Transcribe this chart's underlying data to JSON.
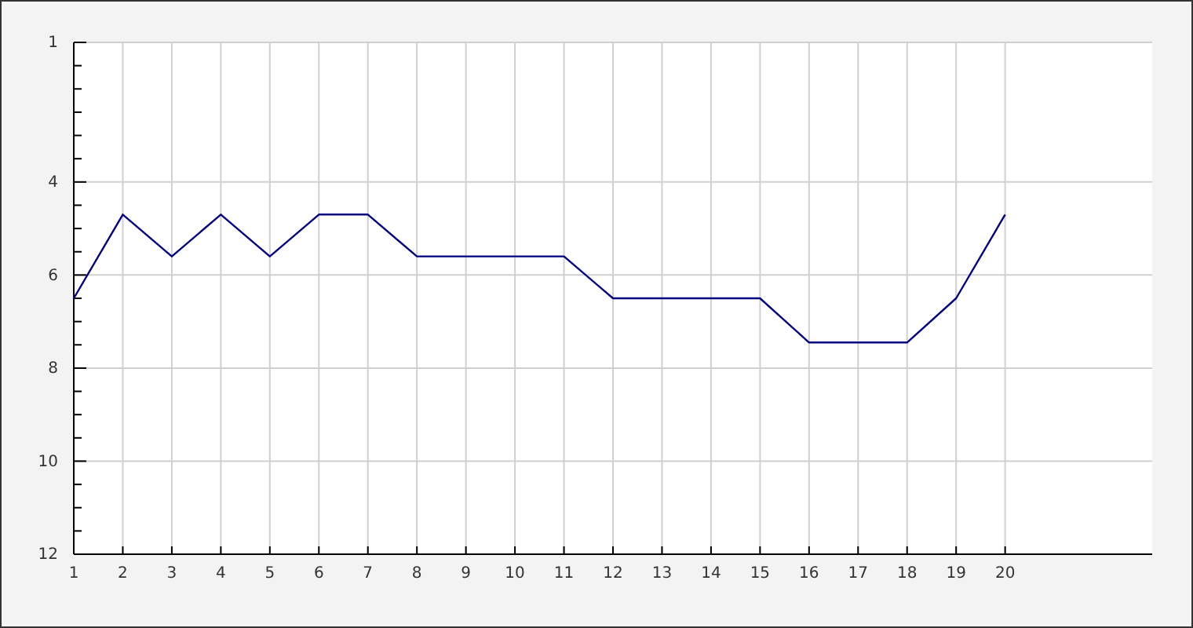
{
  "chart_data": {
    "type": "line",
    "x": [
      1,
      2,
      3,
      4,
      5,
      6,
      7,
      8,
      9,
      10,
      11,
      12,
      13,
      14,
      15,
      16,
      17,
      18,
      19,
      20
    ],
    "series": [
      {
        "color": "#000080",
        "values": [
          6.5,
          4.7,
          5.6,
          4.7,
          5.6,
          4.7,
          4.7,
          5.6,
          5.6,
          5.6,
          5.6,
          6.5,
          6.5,
          6.5,
          6.5,
          7.45,
          7.45,
          7.45,
          6.5,
          4.7
        ]
      }
    ],
    "xlim": [
      1,
      23
    ],
    "xticks": [
      1,
      2,
      3,
      4,
      5,
      6,
      7,
      8,
      9,
      10,
      11,
      12,
      13,
      14,
      15,
      16,
      17,
      18,
      19,
      20
    ],
    "ylim": [
      12,
      1
    ],
    "yticks": [
      1,
      {
        "value": 1.5,
        "label": null
      },
      {
        "value": 2,
        "label": null
      },
      {
        "value": 2.5,
        "label": null
      },
      {
        "value": 3,
        "label": null
      },
      {
        "value": 3.5,
        "label": null
      },
      4,
      {
        "value": 4.5,
        "label": null
      },
      {
        "value": 5,
        "label": null
      },
      {
        "value": 5.5,
        "label": null
      },
      6,
      {
        "value": 6.5,
        "label": null
      },
      {
        "value": 7,
        "label": null
      },
      {
        "value": 7.5,
        "label": null
      },
      8,
      {
        "value": 8.5,
        "label": null
      },
      {
        "value": 9,
        "label": null
      },
      {
        "value": 9.5,
        "label": null
      },
      10,
      {
        "value": 10.5,
        "label": null
      },
      {
        "value": 11,
        "label": null
      },
      {
        "value": 11.5,
        "label": null
      },
      12
    ],
    "grid": true,
    "marker": "none",
    "line_style": "solid"
  }
}
